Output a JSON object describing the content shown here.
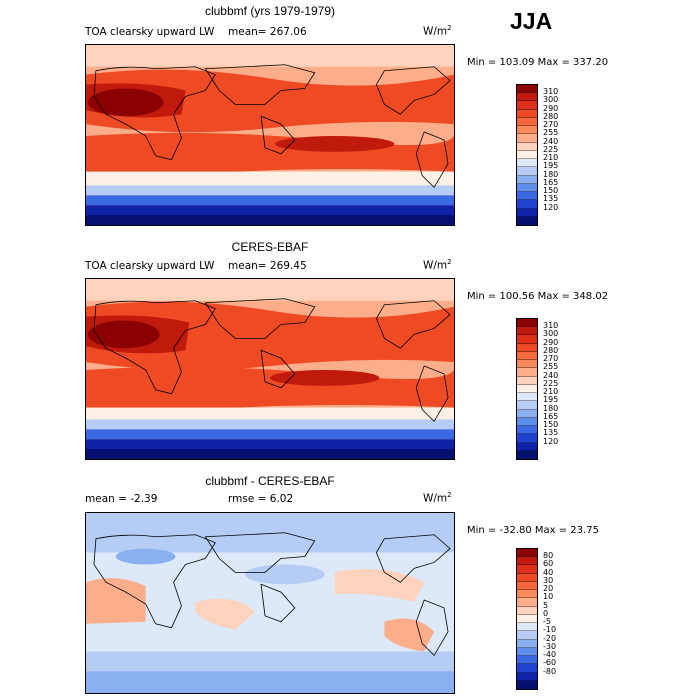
{
  "season": "JJA",
  "panels": [
    {
      "title": "clubbmf (yrs 1979-1979)",
      "variable": "TOA clearsky upward LW",
      "mean_label": "mean= 267.06",
      "unit": "W/m",
      "unit_exp": "2",
      "minmax": "Min = 103.09 Max = 337.20",
      "colors": [
        "#8b0000",
        "#bf1a0c",
        "#dc2f15",
        "#ee4b25",
        "#f56a3c",
        "#f98a5c",
        "#fcae8a",
        "#fdd3bd",
        "#fdf0e6",
        "#dde9f8",
        "#b5cdf5",
        "#8ab0f0",
        "#5f8eea",
        "#3a6ae3",
        "#1f43cf",
        "#0f22a8",
        "#050f70"
      ],
      "labels": [
        "310",
        "300",
        "290",
        "280",
        "270",
        "255",
        "240",
        "225",
        "210",
        "195",
        "180",
        "165",
        "150",
        "135",
        "120"
      ]
    },
    {
      "title": "CERES-EBAF",
      "variable": "TOA clearsky upward LW",
      "mean_label": "mean= 269.45",
      "unit": "W/m",
      "unit_exp": "2",
      "minmax": "Min = 100.56 Max = 348.02",
      "colors": [
        "#8b0000",
        "#bf1a0c",
        "#dc2f15",
        "#ee4b25",
        "#f56a3c",
        "#f98a5c",
        "#fcae8a",
        "#fdd3bd",
        "#fdf0e6",
        "#dde9f8",
        "#b5cdf5",
        "#8ab0f0",
        "#5f8eea",
        "#3a6ae3",
        "#1f43cf",
        "#0f22a8",
        "#050f70"
      ],
      "labels": [
        "310",
        "300",
        "290",
        "280",
        "270",
        "255",
        "240",
        "225",
        "210",
        "195",
        "180",
        "165",
        "150",
        "135",
        "120"
      ]
    },
    {
      "title": "clubbmf - CERES-EBAF",
      "mean_label": "mean =  -2.39",
      "rmse_label": "rmse =   6.02",
      "unit": "W/m",
      "unit_exp": "2",
      "minmax": "Min = -32.80 Max =  23.75",
      "colors": [
        "#8b0000",
        "#bf1a0c",
        "#dc2f15",
        "#ee4b25",
        "#f56a3c",
        "#f98a5c",
        "#fcae8a",
        "#fdd3bd",
        "#fdf0e6",
        "#dde9f8",
        "#b5cdf5",
        "#8ab0f0",
        "#5f8eea",
        "#3a6ae3",
        "#1f43cf",
        "#0f22a8",
        "#050f70"
      ],
      "labels": [
        "80",
        "60",
        "40",
        "30",
        "20",
        "10",
        "5",
        "0",
        "-5",
        "-10",
        "-20",
        "-30",
        "-40",
        "-60",
        "-80"
      ]
    }
  ]
}
